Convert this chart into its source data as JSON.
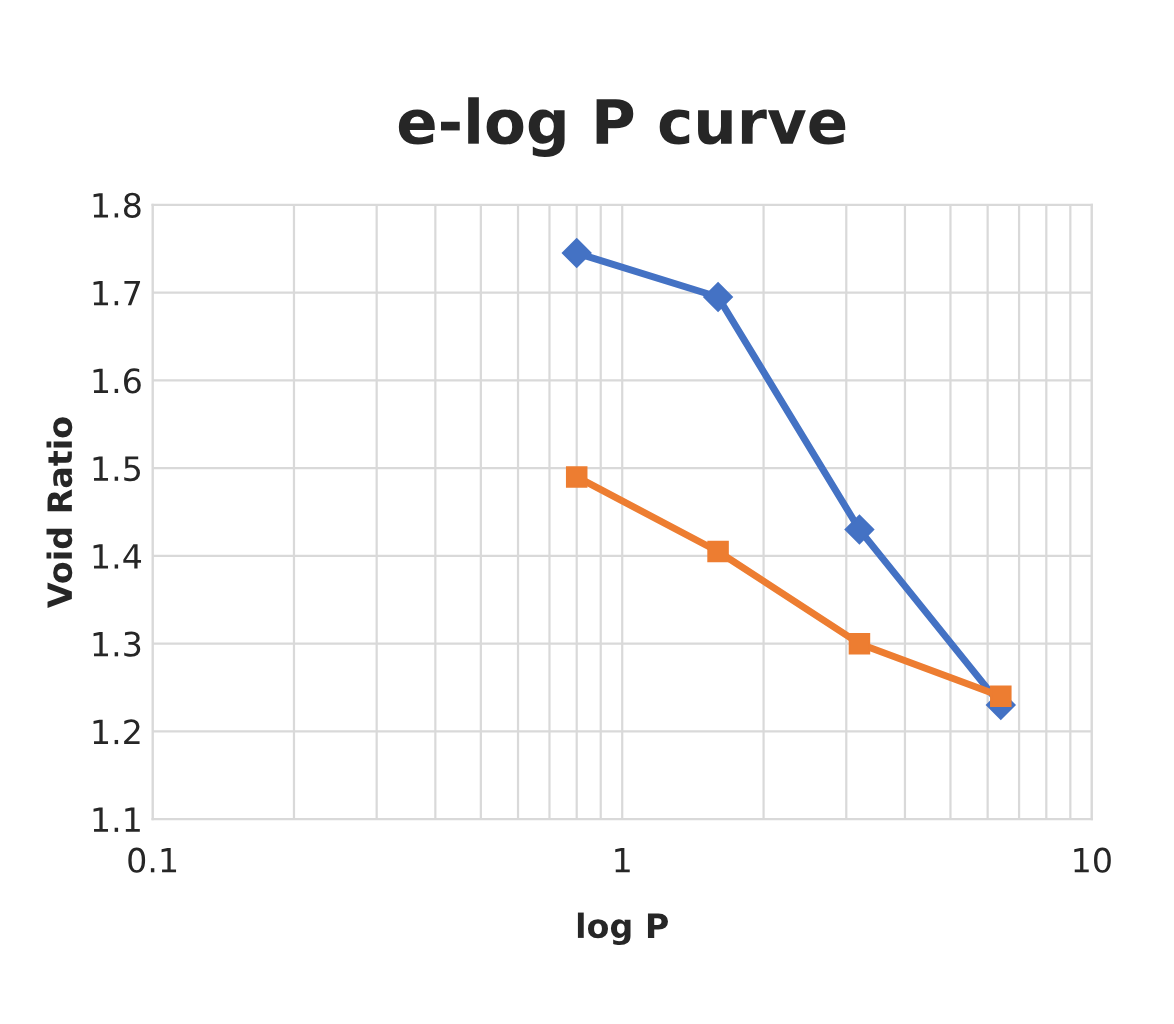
{
  "chart_data": {
    "type": "line",
    "title": "e-log P curve",
    "xlabel": "log P",
    "ylabel": "Void Ratio",
    "log": "x",
    "x": [
      0.8,
      1.6,
      3.2,
      6.4
    ],
    "series": [
      {
        "color": "#4472c4",
        "marker": "diamond",
        "values": [
          1.745,
          1.695,
          1.43,
          1.23
        ]
      },
      {
        "color": "#ed7d31",
        "marker": "square",
        "values": [
          1.49,
          1.405,
          1.3,
          1.24
        ]
      }
    ],
    "xlim": [
      0.1,
      10
    ],
    "ylim": [
      1.1,
      1.8
    ],
    "xticks": [
      0.1,
      {
        "value": 0.2,
        "label": null
      },
      {
        "value": 0.3,
        "label": null
      },
      {
        "value": 0.4,
        "label": null
      },
      {
        "value": 0.5,
        "label": null
      },
      {
        "value": 0.6,
        "label": null
      },
      {
        "value": 0.7,
        "label": null
      },
      {
        "value": 0.8,
        "label": null
      },
      {
        "value": 0.9,
        "label": null
      },
      1,
      {
        "value": 2,
        "label": null
      },
      {
        "value": 3,
        "label": null
      },
      {
        "value": 4,
        "label": null
      },
      {
        "value": 5,
        "label": null
      },
      {
        "value": 6,
        "label": null
      },
      {
        "value": 7,
        "label": null
      },
      {
        "value": 8,
        "label": null
      },
      {
        "value": 9,
        "label": null
      },
      10
    ],
    "yticks": [
      1.1,
      1.2,
      1.3,
      1.4,
      1.5,
      1.6,
      1.7,
      1.8
    ],
    "grid": true
  }
}
